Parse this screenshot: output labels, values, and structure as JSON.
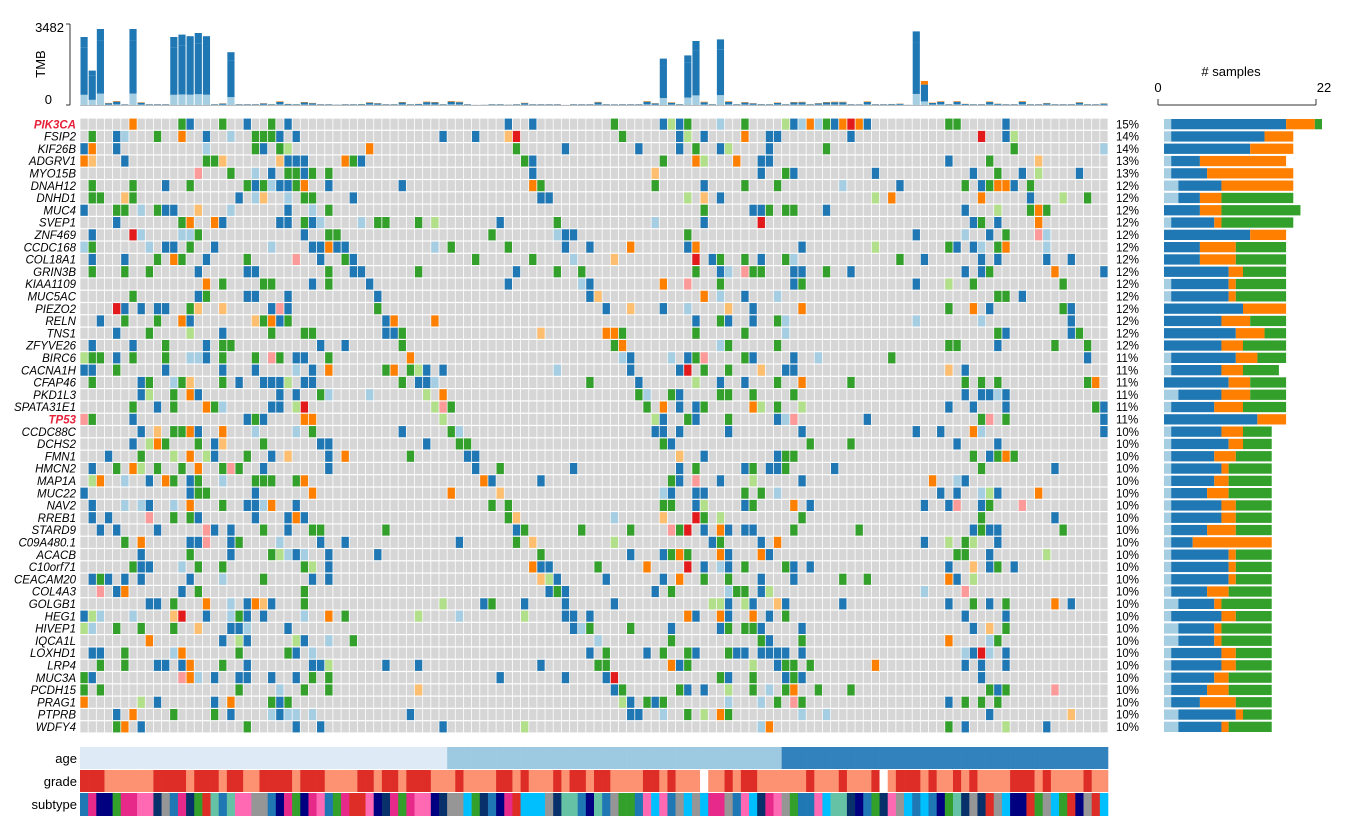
{
  "chart_data": {
    "type": "oncoprint",
    "tmb_axis": {
      "label": "TMB",
      "ticks": [
        "3482",
        "0"
      ],
      "range": [
        0,
        3482
      ]
    },
    "samples_axis": {
      "label": "# samples",
      "ticks": [
        "0",
        "22"
      ],
      "range": [
        0,
        22
      ]
    },
    "genes": [
      {
        "name": "PIK3CA",
        "pct": "15%",
        "highlight": true,
        "counts": [
          1,
          16,
          4,
          1
        ]
      },
      {
        "name": "FSIP2",
        "pct": "14%",
        "highlight": false,
        "counts": [
          1,
          13,
          4,
          0
        ]
      },
      {
        "name": "KIF26B",
        "pct": "14%",
        "highlight": false,
        "counts": [
          0,
          12,
          6,
          0
        ]
      },
      {
        "name": "ADGRV1",
        "pct": "13%",
        "highlight": false,
        "counts": [
          1,
          4,
          12,
          0
        ]
      },
      {
        "name": "MYO15B",
        "pct": "13%",
        "highlight": false,
        "counts": [
          1,
          5,
          12,
          0
        ]
      },
      {
        "name": "DNAH12",
        "pct": "12%",
        "highlight": false,
        "counts": [
          2,
          6,
          10,
          0
        ]
      },
      {
        "name": "DNHD1",
        "pct": "12%",
        "highlight": false,
        "counts": [
          2,
          3,
          3,
          10
        ]
      },
      {
        "name": "MUC4",
        "pct": "12%",
        "highlight": false,
        "counts": [
          0,
          5,
          3,
          11
        ]
      },
      {
        "name": "SVEP1",
        "pct": "12%",
        "highlight": false,
        "counts": [
          1,
          6,
          1,
          10
        ]
      },
      {
        "name": "ZNF469",
        "pct": "12%",
        "highlight": false,
        "counts": [
          0,
          12,
          5,
          0
        ]
      },
      {
        "name": "CCDC168",
        "pct": "12%",
        "highlight": false,
        "counts": [
          0,
          5,
          5,
          7
        ]
      },
      {
        "name": "COL18A1",
        "pct": "12%",
        "highlight": false,
        "counts": [
          0,
          5,
          5,
          7
        ]
      },
      {
        "name": "GRIN3B",
        "pct": "12%",
        "highlight": false,
        "counts": [
          0,
          9,
          2,
          6
        ]
      },
      {
        "name": "KIAA1109",
        "pct": "12%",
        "highlight": false,
        "counts": [
          1,
          8,
          1,
          7
        ]
      },
      {
        "name": "MUC5AC",
        "pct": "12%",
        "highlight": false,
        "counts": [
          1,
          8,
          1,
          7
        ]
      },
      {
        "name": "PIEZO2",
        "pct": "12%",
        "highlight": false,
        "counts": [
          0,
          11,
          6,
          0
        ]
      },
      {
        "name": "RELN",
        "pct": "12%",
        "highlight": false,
        "counts": [
          0,
          8,
          4,
          5
        ]
      },
      {
        "name": "TNS1",
        "pct": "12%",
        "highlight": false,
        "counts": [
          0,
          10,
          4,
          3
        ]
      },
      {
        "name": "ZFYVE26",
        "pct": "12%",
        "highlight": false,
        "counts": [
          0,
          8,
          3,
          6
        ]
      },
      {
        "name": "BIRC6",
        "pct": "11%",
        "highlight": false,
        "counts": [
          1,
          9,
          3,
          4
        ]
      },
      {
        "name": "CACNA1H",
        "pct": "11%",
        "highlight": false,
        "counts": [
          1,
          7,
          3,
          5
        ]
      },
      {
        "name": "CFAP46",
        "pct": "11%",
        "highlight": false,
        "counts": [
          0,
          9,
          3,
          5
        ]
      },
      {
        "name": "PKD1L3",
        "pct": "11%",
        "highlight": false,
        "counts": [
          2,
          6,
          4,
          5
        ]
      },
      {
        "name": "SPATA31E1",
        "pct": "11%",
        "highlight": false,
        "counts": [
          1,
          6,
          4,
          6
        ]
      },
      {
        "name": "TP53",
        "pct": "11%",
        "highlight": true,
        "counts": [
          0,
          13,
          4,
          0
        ]
      },
      {
        "name": "CCDC88C",
        "pct": "10%",
        "highlight": false,
        "counts": [
          1,
          7,
          3,
          4
        ]
      },
      {
        "name": "DCHS2",
        "pct": "10%",
        "highlight": false,
        "counts": [
          1,
          8,
          2,
          4
        ]
      },
      {
        "name": "FMN1",
        "pct": "10%",
        "highlight": false,
        "counts": [
          1,
          6,
          3,
          5
        ]
      },
      {
        "name": "HMCN2",
        "pct": "10%",
        "highlight": false,
        "counts": [
          1,
          7,
          1,
          6
        ]
      },
      {
        "name": "MAP1A",
        "pct": "10%",
        "highlight": false,
        "counts": [
          1,
          6,
          2,
          6
        ]
      },
      {
        "name": "MUC22",
        "pct": "10%",
        "highlight": false,
        "counts": [
          1,
          5,
          3,
          6
        ]
      },
      {
        "name": "NAV2",
        "pct": "10%",
        "highlight": false,
        "counts": [
          1,
          7,
          2,
          5
        ]
      },
      {
        "name": "RREB1",
        "pct": "10%",
        "highlight": false,
        "counts": [
          1,
          7,
          2,
          5
        ]
      },
      {
        "name": "STARD9",
        "pct": "10%",
        "highlight": false,
        "counts": [
          1,
          5,
          4,
          5
        ]
      },
      {
        "name": "C09A480.1",
        "pct": "10%",
        "highlight": false,
        "counts": [
          1,
          3,
          11,
          0
        ]
      },
      {
        "name": "ACACB",
        "pct": "10%",
        "highlight": false,
        "counts": [
          1,
          8,
          1,
          5
        ]
      },
      {
        "name": "C10orf71",
        "pct": "10%",
        "highlight": false,
        "counts": [
          1,
          8,
          1,
          5
        ]
      },
      {
        "name": "CEACAM20",
        "pct": "10%",
        "highlight": false,
        "counts": [
          1,
          8,
          1,
          5
        ]
      },
      {
        "name": "COL4A3",
        "pct": "10%",
        "highlight": false,
        "counts": [
          1,
          5,
          3,
          6
        ]
      },
      {
        "name": "GOLGB1",
        "pct": "10%",
        "highlight": false,
        "counts": [
          2,
          5,
          1,
          7
        ]
      },
      {
        "name": "HEG1",
        "pct": "10%",
        "highlight": false,
        "counts": [
          1,
          7,
          2,
          5
        ]
      },
      {
        "name": "HIVEP1",
        "pct": "10%",
        "highlight": false,
        "counts": [
          2,
          5,
          1,
          7
        ]
      },
      {
        "name": "IQCA1L",
        "pct": "10%",
        "highlight": false,
        "counts": [
          2,
          5,
          1,
          7
        ]
      },
      {
        "name": "LOXHD1",
        "pct": "10%",
        "highlight": false,
        "counts": [
          1,
          7,
          2,
          5
        ]
      },
      {
        "name": "LRP4",
        "pct": "10%",
        "highlight": false,
        "counts": [
          1,
          7,
          2,
          5
        ]
      },
      {
        "name": "MUC3A",
        "pct": "10%",
        "highlight": false,
        "counts": [
          1,
          6,
          2,
          6
        ]
      },
      {
        "name": "PCDH15",
        "pct": "10%",
        "highlight": false,
        "counts": [
          1,
          5,
          3,
          6
        ]
      },
      {
        "name": "PRAG1",
        "pct": "10%",
        "highlight": false,
        "counts": [
          1,
          4,
          5,
          5
        ]
      },
      {
        "name": "PTPRB",
        "pct": "10%",
        "highlight": false,
        "counts": [
          2,
          8,
          1,
          4
        ]
      },
      {
        "name": "WDFY4",
        "pct": "10%",
        "highlight": false,
        "counts": [
          2,
          6,
          1,
          6
        ]
      }
    ],
    "mutation_colors": [
      "#a6cee3",
      "#1f78b4",
      "#fb9a99",
      "#e31a1c",
      "#ff7f00",
      "#fdbf6f",
      "#b2df8a",
      "#33a02c"
    ],
    "bar_stack_colors": [
      "#a6cee3",
      "#1f78b4",
      "#ff7f00",
      "#33a02c"
    ],
    "cell_background": "#d6d6d6",
    "highlight_color": "#e8213a",
    "annotation_tracks": [
      {
        "label": "age",
        "palette": [
          "#deebf7",
          "#9ecae1",
          "#3182bd"
        ]
      },
      {
        "label": "grade",
        "palette": [
          "#fc9272",
          "#de2d26",
          "#ffffff"
        ]
      },
      {
        "label": "subtype",
        "palette": [
          "#1f78b4",
          "#33a02c",
          "#08306b",
          "#e7298a",
          "#00bfff",
          "#969696",
          "#de2d26",
          "#ff69b4",
          "#000080",
          "#66c2a5"
        ]
      }
    ]
  }
}
